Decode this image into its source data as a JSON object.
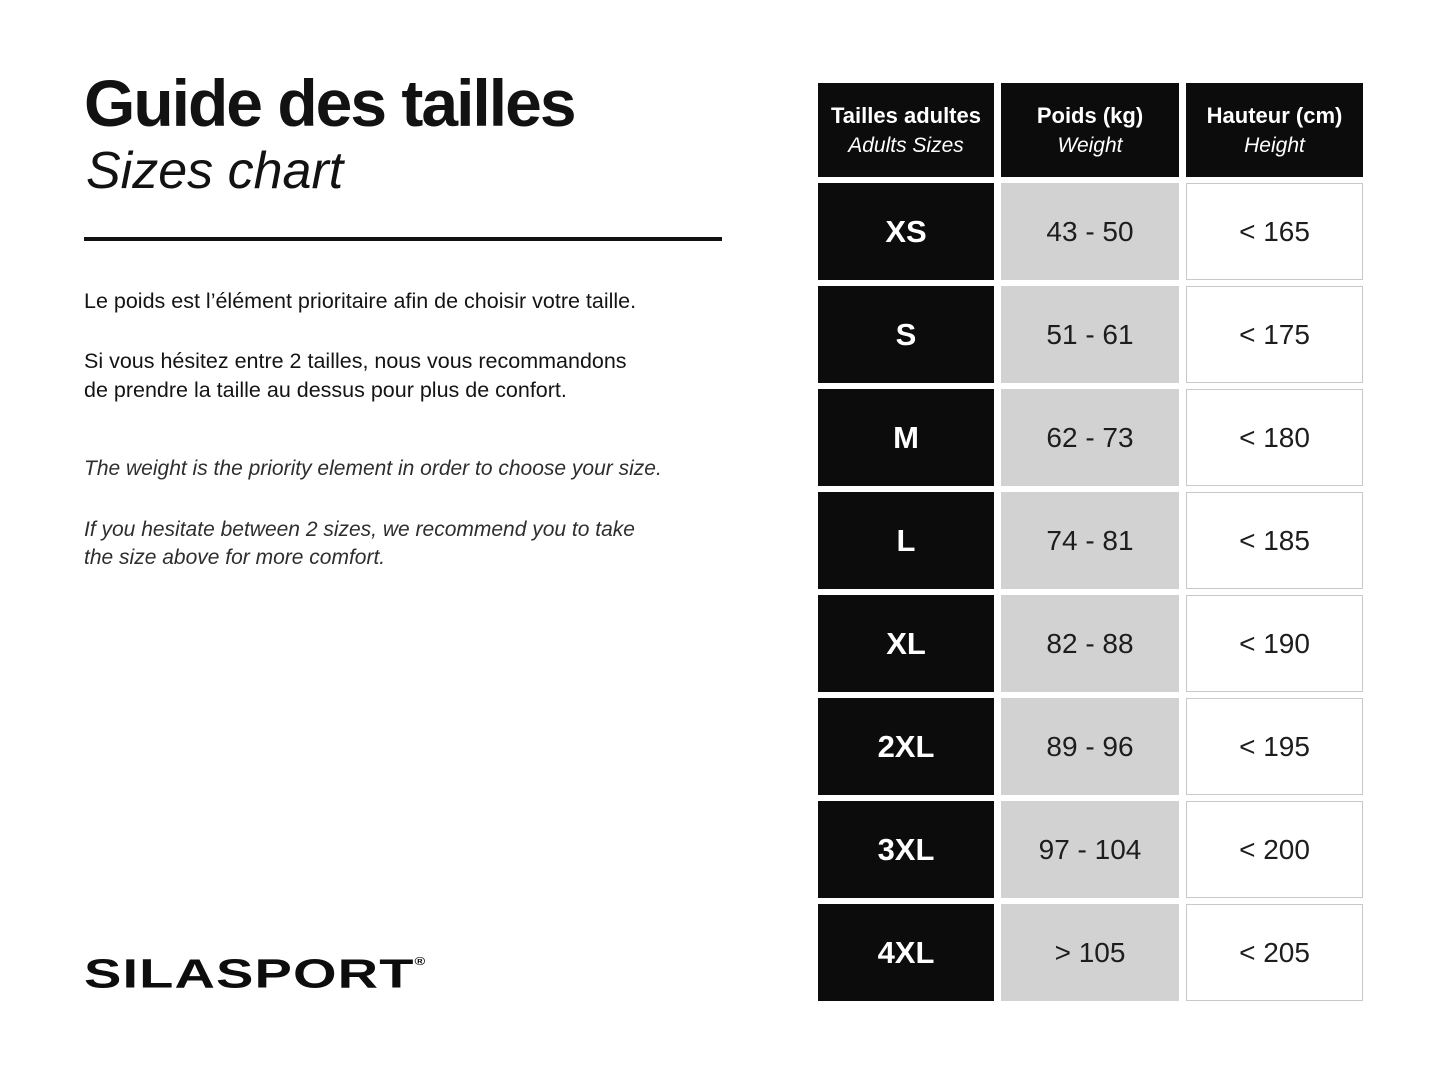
{
  "page": {
    "title_fr": "Guide des tailles",
    "title_en": "Sizes chart",
    "intro_fr_1": "Le poids est l’élément prioritaire afin de choisir votre taille.",
    "intro_fr_2": "Si vous hésitez entre 2 tailles, nous vous recommandons\nde prendre la taille au dessus pour plus de confort.",
    "intro_en_1": "The weight is the priority element in order to choose your size.",
    "intro_en_2": "If you hesitate between 2 sizes, we recommend you to take\nthe size above for more comfort.",
    "brand": "SILASPORT",
    "brand_mark": "®"
  },
  "colors": {
    "black_cell": "#0c0c0c",
    "gray_cell": "#d2d2d2",
    "white_cell_border": "#c9c9c9",
    "background": "#ffffff"
  },
  "chart_data": {
    "type": "table",
    "columns": [
      {
        "label_fr": "Tailles adultes",
        "label_en": "Adults Sizes"
      },
      {
        "label_fr": "Poids (kg)",
        "label_en": "Weight"
      },
      {
        "label_fr": "Hauteur (cm)",
        "label_en": "Height"
      }
    ],
    "rows": [
      {
        "size": "XS",
        "weight_kg": "43 - 50",
        "height_cm": "< 165"
      },
      {
        "size": "S",
        "weight_kg": "51 - 61",
        "height_cm": "< 175"
      },
      {
        "size": "M",
        "weight_kg": "62 - 73",
        "height_cm": "< 180"
      },
      {
        "size": "L",
        "weight_kg": "74 - 81",
        "height_cm": "< 185"
      },
      {
        "size": "XL",
        "weight_kg": "82 - 88",
        "height_cm": "< 190"
      },
      {
        "size": "2XL",
        "weight_kg": "89 - 96",
        "height_cm": "< 195"
      },
      {
        "size": "3XL",
        "weight_kg": "97 - 104",
        "height_cm": "< 200"
      },
      {
        "size": "4XL",
        "weight_kg": "> 105",
        "height_cm": "< 205"
      }
    ]
  }
}
